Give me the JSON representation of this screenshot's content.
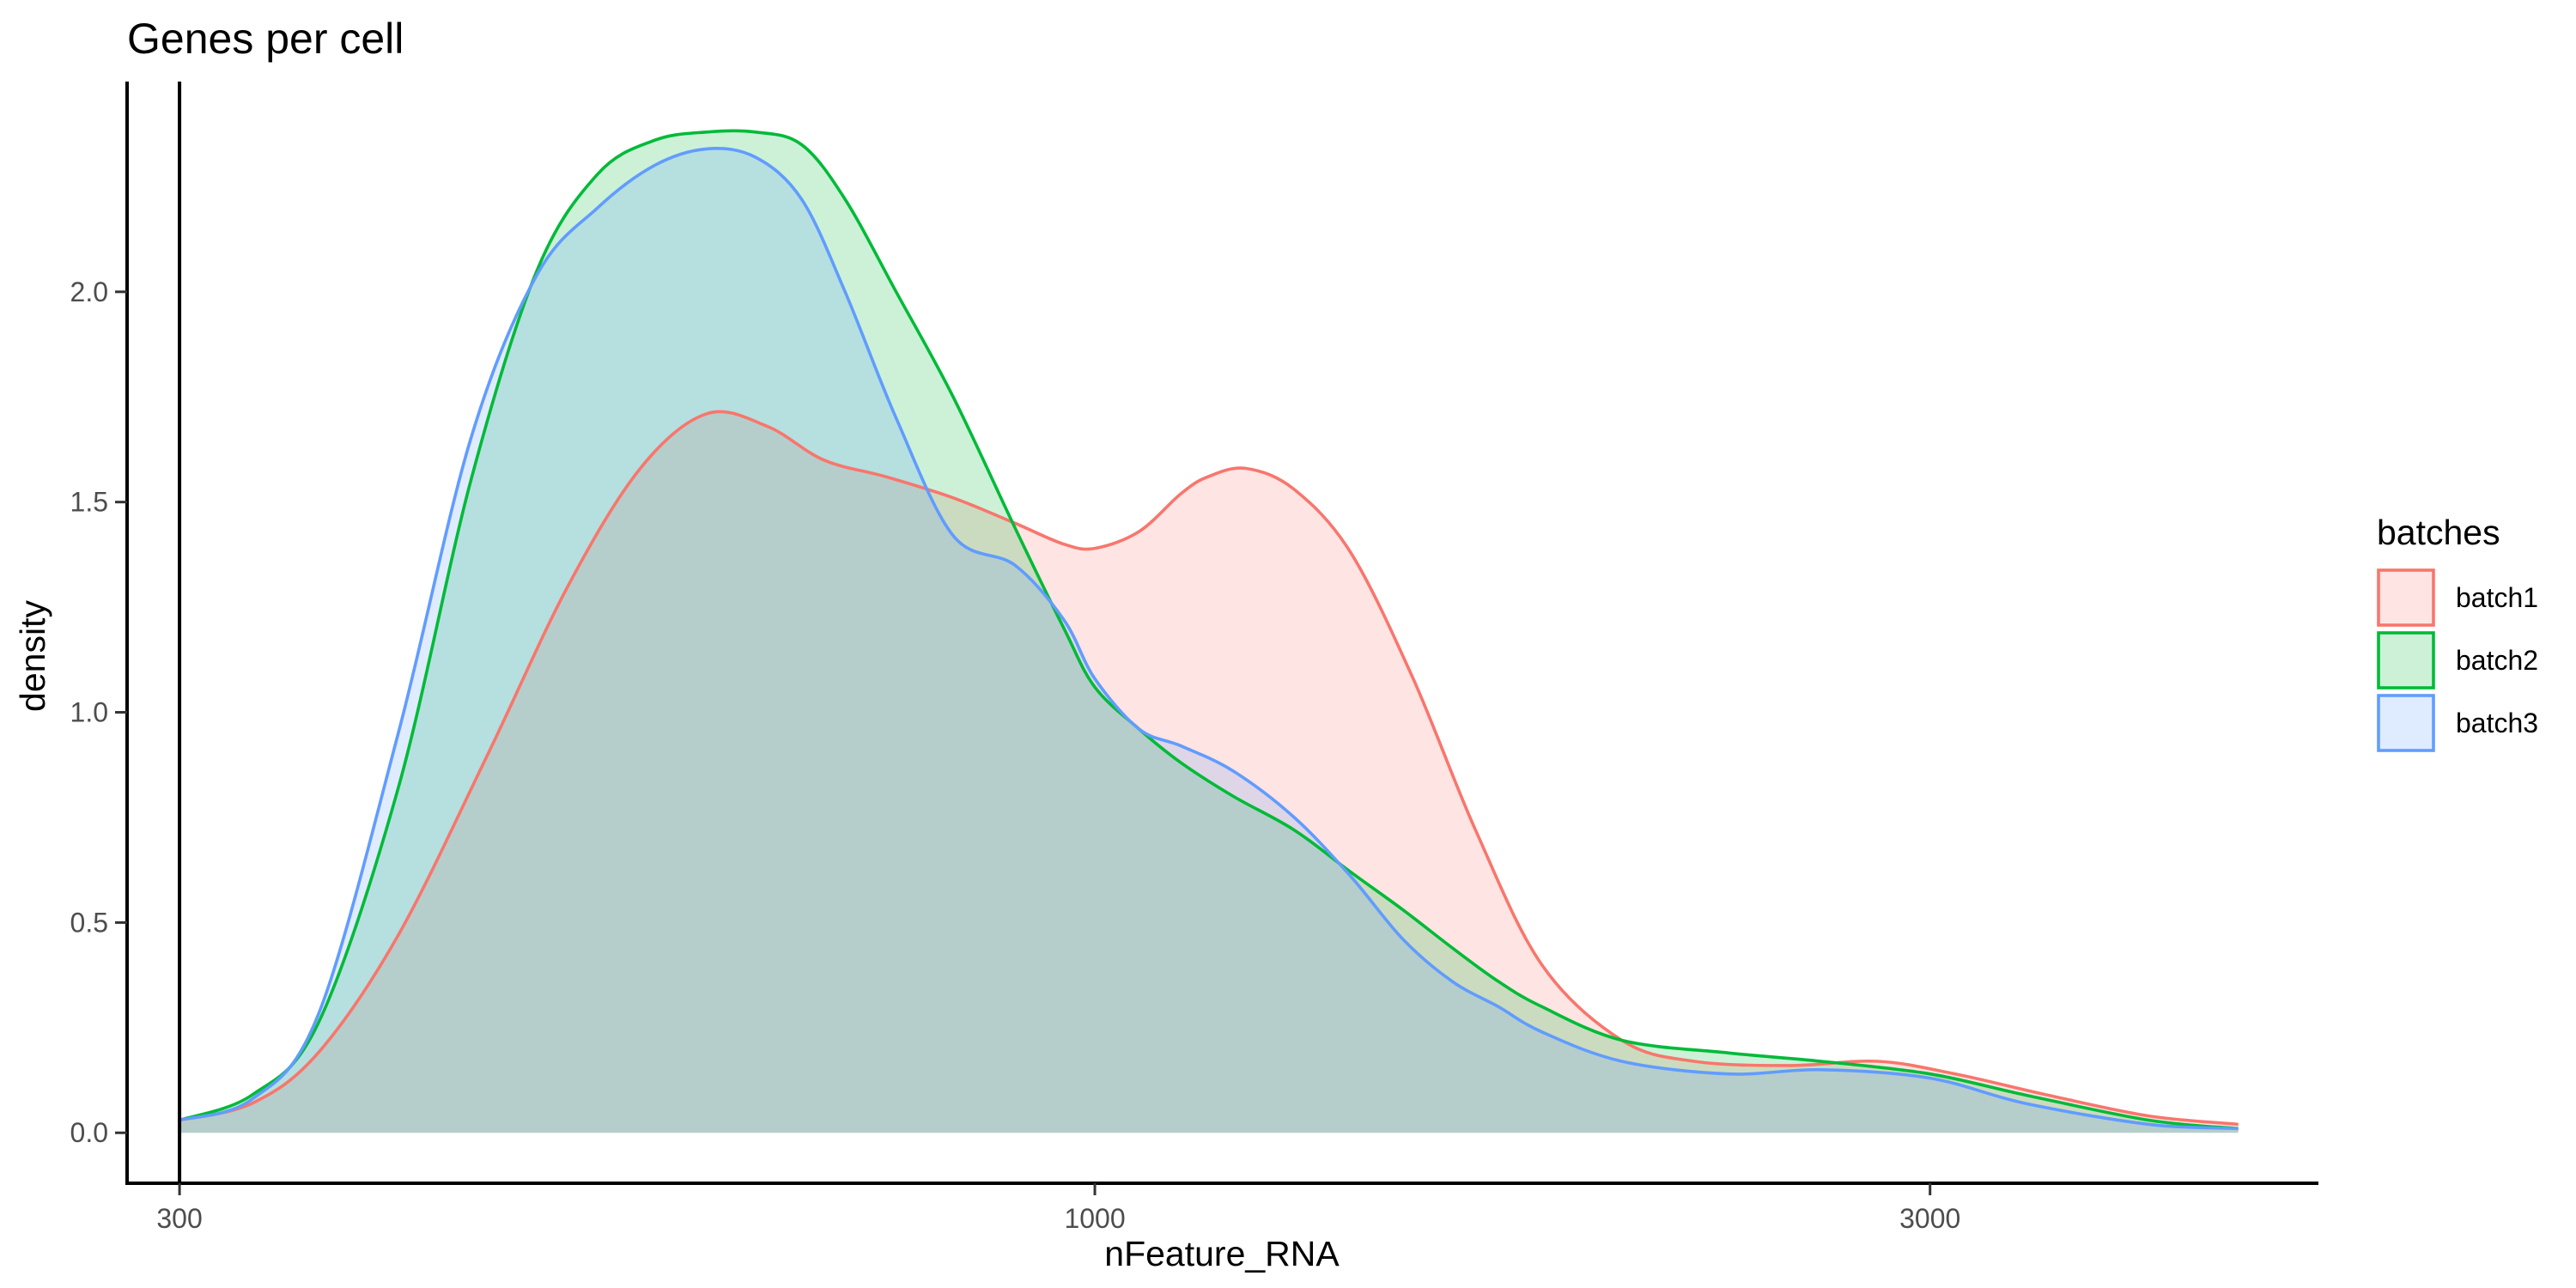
{
  "chart_data": {
    "type": "area",
    "title": "Genes per cell",
    "xlabel": "nFeature_RNA",
    "ylabel": "density",
    "x_scale": "log10",
    "xlim": [
      280,
      5000
    ],
    "ylim": [
      -0.12,
      2.5
    ],
    "x_ticks": [
      300,
      1000,
      3000
    ],
    "x_tick_labels": [
      "300",
      "1000",
      "3000"
    ],
    "y_ticks": [
      0.0,
      0.5,
      1.0,
      1.5,
      2.0
    ],
    "y_tick_labels": [
      "0.0",
      "0.5",
      "1.0",
      "1.5",
      "2.0"
    ],
    "vline_x": 300,
    "grid": false,
    "legend_title": "batches",
    "legend_position": "right",
    "series": [
      {
        "name": "batch1",
        "color": "#F8766D",
        "x": [
          300,
          330,
          360,
          400,
          450,
          500,
          550,
          600,
          650,
          700,
          760,
          830,
          900,
          960,
          1000,
          1060,
          1120,
          1160,
          1220,
          1300,
          1400,
          1520,
          1650,
          1800,
          2000,
          2200,
          2500,
          2800,
          3100,
          3500,
          4000,
          4500
        ],
        "y": [
          0.03,
          0.07,
          0.19,
          0.47,
          0.9,
          1.3,
          1.58,
          1.71,
          1.68,
          1.6,
          1.56,
          1.51,
          1.45,
          1.4,
          1.39,
          1.43,
          1.52,
          1.56,
          1.58,
          1.53,
          1.38,
          1.08,
          0.72,
          0.4,
          0.22,
          0.17,
          0.16,
          0.17,
          0.14,
          0.09,
          0.04,
          0.02
        ]
      },
      {
        "name": "batch2",
        "color": "#00BA38",
        "x": [
          300,
          330,
          360,
          400,
          440,
          480,
          520,
          560,
          600,
          640,
          680,
          720,
          770,
          830,
          900,
          960,
          1000,
          1060,
          1120,
          1200,
          1300,
          1400,
          1500,
          1600,
          1700,
          1800,
          2000,
          2300,
          2600,
          3000,
          3400,
          4000,
          4500
        ],
        "y": [
          0.03,
          0.09,
          0.26,
          0.82,
          1.55,
          2.05,
          2.28,
          2.36,
          2.38,
          2.38,
          2.35,
          2.22,
          2.0,
          1.75,
          1.44,
          1.2,
          1.06,
          0.96,
          0.88,
          0.8,
          0.72,
          0.62,
          0.53,
          0.44,
          0.36,
          0.3,
          0.22,
          0.19,
          0.17,
          0.14,
          0.09,
          0.03,
          0.01
        ]
      },
      {
        "name": "batch3",
        "color": "#619CFF",
        "x": [
          300,
          330,
          360,
          400,
          440,
          480,
          520,
          560,
          600,
          640,
          680,
          720,
          770,
          830,
          900,
          960,
          1000,
          1060,
          1120,
          1200,
          1300,
          1400,
          1500,
          1600,
          1700,
          1800,
          2000,
          2300,
          2600,
          3000,
          3400,
          4000,
          4500
        ],
        "y": [
          0.03,
          0.08,
          0.28,
          0.95,
          1.65,
          2.04,
          2.2,
          2.3,
          2.34,
          2.32,
          2.22,
          2.0,
          1.7,
          1.42,
          1.35,
          1.22,
          1.08,
          0.96,
          0.92,
          0.86,
          0.75,
          0.61,
          0.46,
          0.36,
          0.3,
          0.24,
          0.17,
          0.14,
          0.15,
          0.13,
          0.07,
          0.02,
          0.01
        ]
      }
    ]
  }
}
